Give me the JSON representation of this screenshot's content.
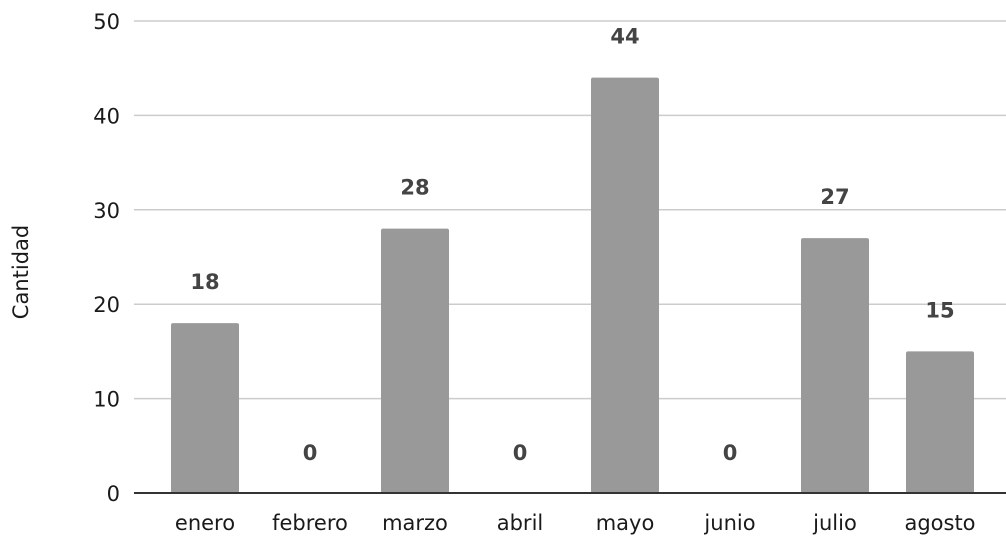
{
  "chart_data": {
    "type": "bar",
    "title": "",
    "xlabel": "",
    "ylabel": "Cantidad",
    "categories": [
      "enero",
      "febrero",
      "marzo",
      "abril",
      "mayo",
      "junio",
      "julio",
      "agosto"
    ],
    "series": [
      {
        "values": [
          18,
          0,
          28,
          0,
          44,
          0,
          27,
          15
        ],
        "color": "#999999"
      }
    ],
    "data_labels": [
      "18",
      "0",
      "28",
      "0",
      "44",
      "0",
      "27",
      "15"
    ],
    "ylim": [
      0,
      50
    ],
    "yticks": [
      "0",
      "10",
      "20",
      "30",
      "40",
      "50"
    ],
    "grid": true,
    "legend": "none",
    "colors": {
      "bar": "#999999",
      "grid": "#cccccc",
      "axis": "#333333",
      "label": "#444444"
    }
  }
}
